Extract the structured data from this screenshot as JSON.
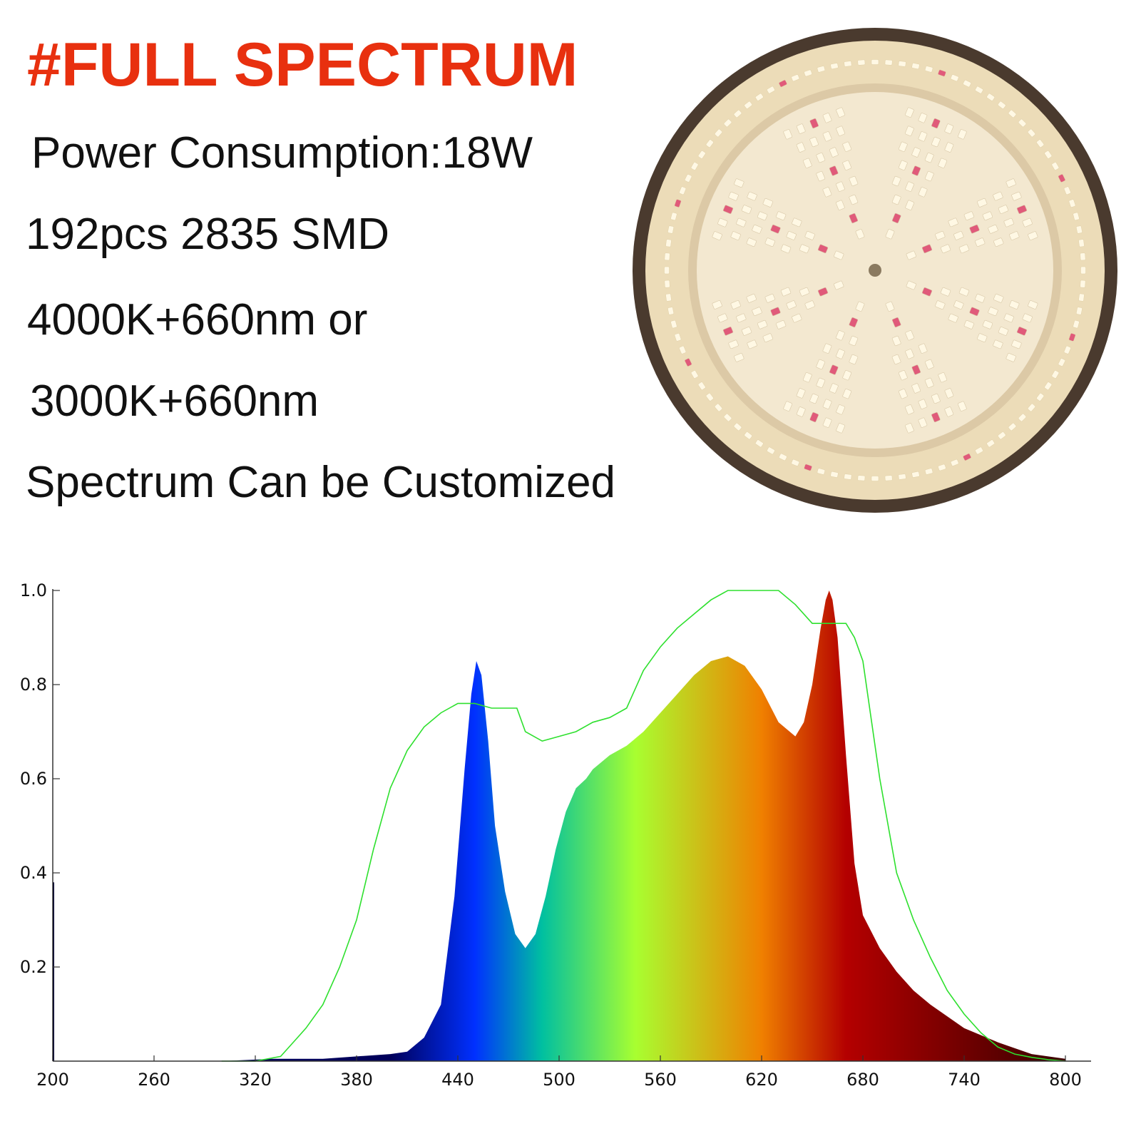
{
  "headline": "#FULL SPECTRUM",
  "specs": [
    "Power Consumption:18W",
    "192pcs 2835 SMD",
    "4000K+660nm or",
    "3000K+660nm",
    "Spectrum Can be Customized"
  ],
  "colors": {
    "headline": "#e8300f",
    "reference_line": "#2ee02e",
    "spectrum_stops": [
      "#00005a",
      "#0030ff",
      "#00c0a0",
      "#a8ff30",
      "#f08000",
      "#b40000",
      "#400000"
    ]
  },
  "lamp": {
    "led_white": "#fff8e4",
    "led_red": "#e05a7a",
    "housing": "#4a3a2e",
    "rim": "#efe2c4"
  },
  "chart_data": {
    "type": "area",
    "xlim": [
      200,
      800
    ],
    "ylim": [
      0,
      1.0
    ],
    "x_ticks": [
      "200",
      "260",
      "320",
      "380",
      "440",
      "500",
      "560",
      "620",
      "680",
      "740",
      "800"
    ],
    "y_ticks": [
      "0.2",
      "0.4",
      "0.6",
      "0.8",
      "1.0"
    ],
    "grid": false,
    "series": [
      {
        "x": [
          200,
          300,
          330,
          360,
          380,
          400,
          410,
          420,
          430,
          438,
          444,
          448,
          451,
          454,
          458,
          462,
          468,
          474,
          480,
          486,
          492,
          498,
          504,
          510,
          516,
          520,
          530,
          540,
          550,
          560,
          570,
          580,
          590,
          600,
          610,
          620,
          630,
          640,
          645,
          650,
          655,
          658,
          660,
          662,
          665,
          670,
          675,
          680,
          690,
          700,
          710,
          720,
          740,
          760,
          780,
          800
        ],
        "y": [
          0,
          0,
          0.005,
          0.005,
          0.01,
          0.015,
          0.02,
          0.05,
          0.12,
          0.35,
          0.62,
          0.78,
          0.85,
          0.82,
          0.68,
          0.5,
          0.36,
          0.27,
          0.24,
          0.27,
          0.35,
          0.45,
          0.53,
          0.58,
          0.6,
          0.62,
          0.65,
          0.67,
          0.7,
          0.74,
          0.78,
          0.82,
          0.85,
          0.86,
          0.84,
          0.79,
          0.72,
          0.69,
          0.72,
          0.8,
          0.92,
          0.98,
          1.0,
          0.98,
          0.9,
          0.65,
          0.42,
          0.31,
          0.24,
          0.19,
          0.15,
          0.12,
          0.07,
          0.04,
          0.015,
          0.005
        ]
      },
      {
        "x": [
          300,
          320,
          335,
          345,
          350,
          360,
          370,
          380,
          390,
          400,
          410,
          420,
          430,
          440,
          450,
          460,
          470,
          475,
          480,
          490,
          500,
          510,
          520,
          530,
          540,
          550,
          560,
          570,
          580,
          590,
          600,
          610,
          620,
          630,
          640,
          650,
          660,
          670,
          675,
          680,
          690,
          700,
          710,
          720,
          730,
          740,
          750,
          760,
          770,
          780,
          790,
          800
        ],
        "y": [
          0,
          0,
          0.01,
          0.05,
          0.07,
          0.12,
          0.2,
          0.3,
          0.45,
          0.58,
          0.66,
          0.71,
          0.74,
          0.76,
          0.76,
          0.75,
          0.75,
          0.75,
          0.7,
          0.68,
          0.69,
          0.7,
          0.72,
          0.73,
          0.75,
          0.83,
          0.88,
          0.92,
          0.95,
          0.98,
          1.0,
          1.0,
          1.0,
          1.0,
          0.97,
          0.93,
          0.93,
          0.93,
          0.9,
          0.85,
          0.6,
          0.4,
          0.3,
          0.22,
          0.15,
          0.1,
          0.06,
          0.03,
          0.015,
          0.008,
          0.003,
          0
        ]
      }
    ]
  }
}
